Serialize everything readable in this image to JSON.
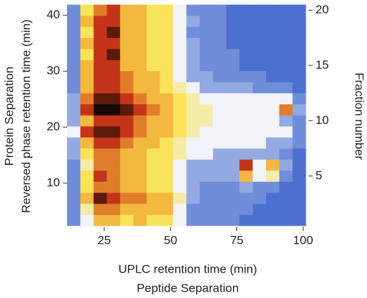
{
  "chart_data": {
    "type": "heatmap",
    "xlabel": "UPLC retention time (min)",
    "xlabel2": "Peptide Separation",
    "ylabel": "Reversed phase retention time (min)",
    "ylabel2": "Protein Separation",
    "y2label": "Fraction number",
    "xlim": [
      11,
      102
    ],
    "xticks": [
      25,
      50,
      75,
      100
    ],
    "ylim": [
      2.2,
      42.1
    ],
    "yticks": [
      10,
      20,
      30,
      40
    ],
    "y2lim": [
      0.4,
      20.6
    ],
    "y2ticks": [
      5,
      10,
      15,
      20
    ],
    "xbins": [
      11,
      16,
      21,
      26,
      31,
      36,
      41,
      46,
      51,
      56,
      61,
      66,
      71,
      76,
      81,
      86,
      91,
      96,
      101
    ],
    "fractions": [
      1,
      2,
      3,
      4,
      5,
      6,
      7,
      8,
      9,
      10,
      11,
      12,
      13,
      14,
      15,
      16,
      17,
      18,
      19,
      20
    ],
    "z": [
      [
        1,
        3,
        6,
        6,
        5,
        6,
        5,
        5,
        3,
        1,
        1,
        1,
        1,
        0,
        0,
        0,
        0,
        0
      ],
      [
        1,
        4,
        7,
        7,
        6,
        6,
        6,
        6,
        3,
        1,
        1,
        1,
        1,
        1,
        0,
        0,
        0,
        0
      ],
      [
        1,
        6,
        9,
        8,
        7,
        7,
        6,
        6,
        4,
        2,
        1,
        1,
        1,
        1,
        1,
        0,
        0,
        0
      ],
      [
        1,
        5,
        7,
        7,
        6,
        6,
        5,
        5,
        3,
        2,
        1,
        1,
        1,
        2,
        1,
        1,
        0,
        0
      ],
      [
        1,
        5,
        8,
        7,
        6,
        6,
        5,
        5,
        3,
        2,
        2,
        2,
        2,
        6,
        3,
        4,
        1,
        0
      ],
      [
        1,
        4,
        7,
        7,
        6,
        6,
        5,
        5,
        3,
        2,
        2,
        2,
        2,
        8,
        3,
        6,
        2,
        0
      ],
      [
        2,
        5,
        7,
        7,
        6,
        6,
        5,
        5,
        4,
        3,
        3,
        2,
        2,
        2,
        2,
        2,
        1,
        0
      ],
      [
        2,
        6,
        8,
        8,
        7,
        6,
        6,
        5,
        4,
        3,
        3,
        3,
        3,
        3,
        3,
        2,
        2,
        1
      ],
      [
        3,
        8,
        9,
        9,
        8,
        7,
        6,
        6,
        5,
        4,
        3,
        3,
        3,
        3,
        3,
        3,
        3,
        1
      ],
      [
        2,
        6,
        8,
        8,
        8,
        7,
        6,
        6,
        5,
        4,
        4,
        3,
        3,
        3,
        3,
        3,
        2,
        1
      ],
      [
        2,
        8,
        10,
        10,
        9,
        8,
        7,
        6,
        5,
        4,
        4,
        3,
        3,
        3,
        3,
        3,
        7,
        2
      ],
      [
        2,
        7,
        9,
        9,
        8,
        7,
        6,
        6,
        5,
        4,
        3,
        3,
        3,
        3,
        3,
        3,
        3,
        1
      ],
      [
        1,
        6,
        8,
        8,
        7,
        6,
        6,
        5,
        4,
        3,
        2,
        2,
        2,
        2,
        1,
        1,
        1,
        0
      ],
      [
        1,
        6,
        8,
        8,
        7,
        6,
        6,
        5,
        3,
        2,
        2,
        1,
        1,
        1,
        1,
        0,
        0,
        0
      ],
      [
        1,
        6,
        8,
        8,
        6,
        6,
        5,
        5,
        3,
        2,
        1,
        1,
        1,
        0,
        0,
        0,
        0,
        0
      ],
      [
        1,
        5,
        8,
        9,
        6,
        6,
        5,
        5,
        3,
        2,
        1,
        1,
        1,
        0,
        0,
        0,
        0,
        0
      ],
      [
        1,
        6,
        8,
        8,
        6,
        6,
        5,
        5,
        3,
        2,
        1,
        1,
        0,
        0,
        0,
        0,
        0,
        0
      ],
      [
        1,
        5,
        8,
        9,
        6,
        6,
        5,
        5,
        3,
        1,
        1,
        1,
        0,
        0,
        0,
        0,
        0,
        0
      ],
      [
        1,
        6,
        8,
        8,
        6,
        6,
        5,
        5,
        3,
        2,
        1,
        1,
        0,
        0,
        0,
        0,
        0,
        0
      ],
      [
        1,
        5,
        7,
        8,
        6,
        6,
        5,
        5,
        3,
        1,
        1,
        1,
        0,
        0,
        0,
        0,
        0,
        0
      ]
    ],
    "colorscale": [
      [
        0,
        "#4d70d0"
      ],
      [
        2,
        "#93a9e2"
      ],
      [
        3,
        "#f2f3f8"
      ],
      [
        5,
        "#f8e35a"
      ],
      [
        6.5,
        "#f0a232"
      ],
      [
        8,
        "#c4341a"
      ],
      [
        9,
        "#5c1a0a"
      ],
      [
        10,
        "#1a0804"
      ]
    ]
  }
}
